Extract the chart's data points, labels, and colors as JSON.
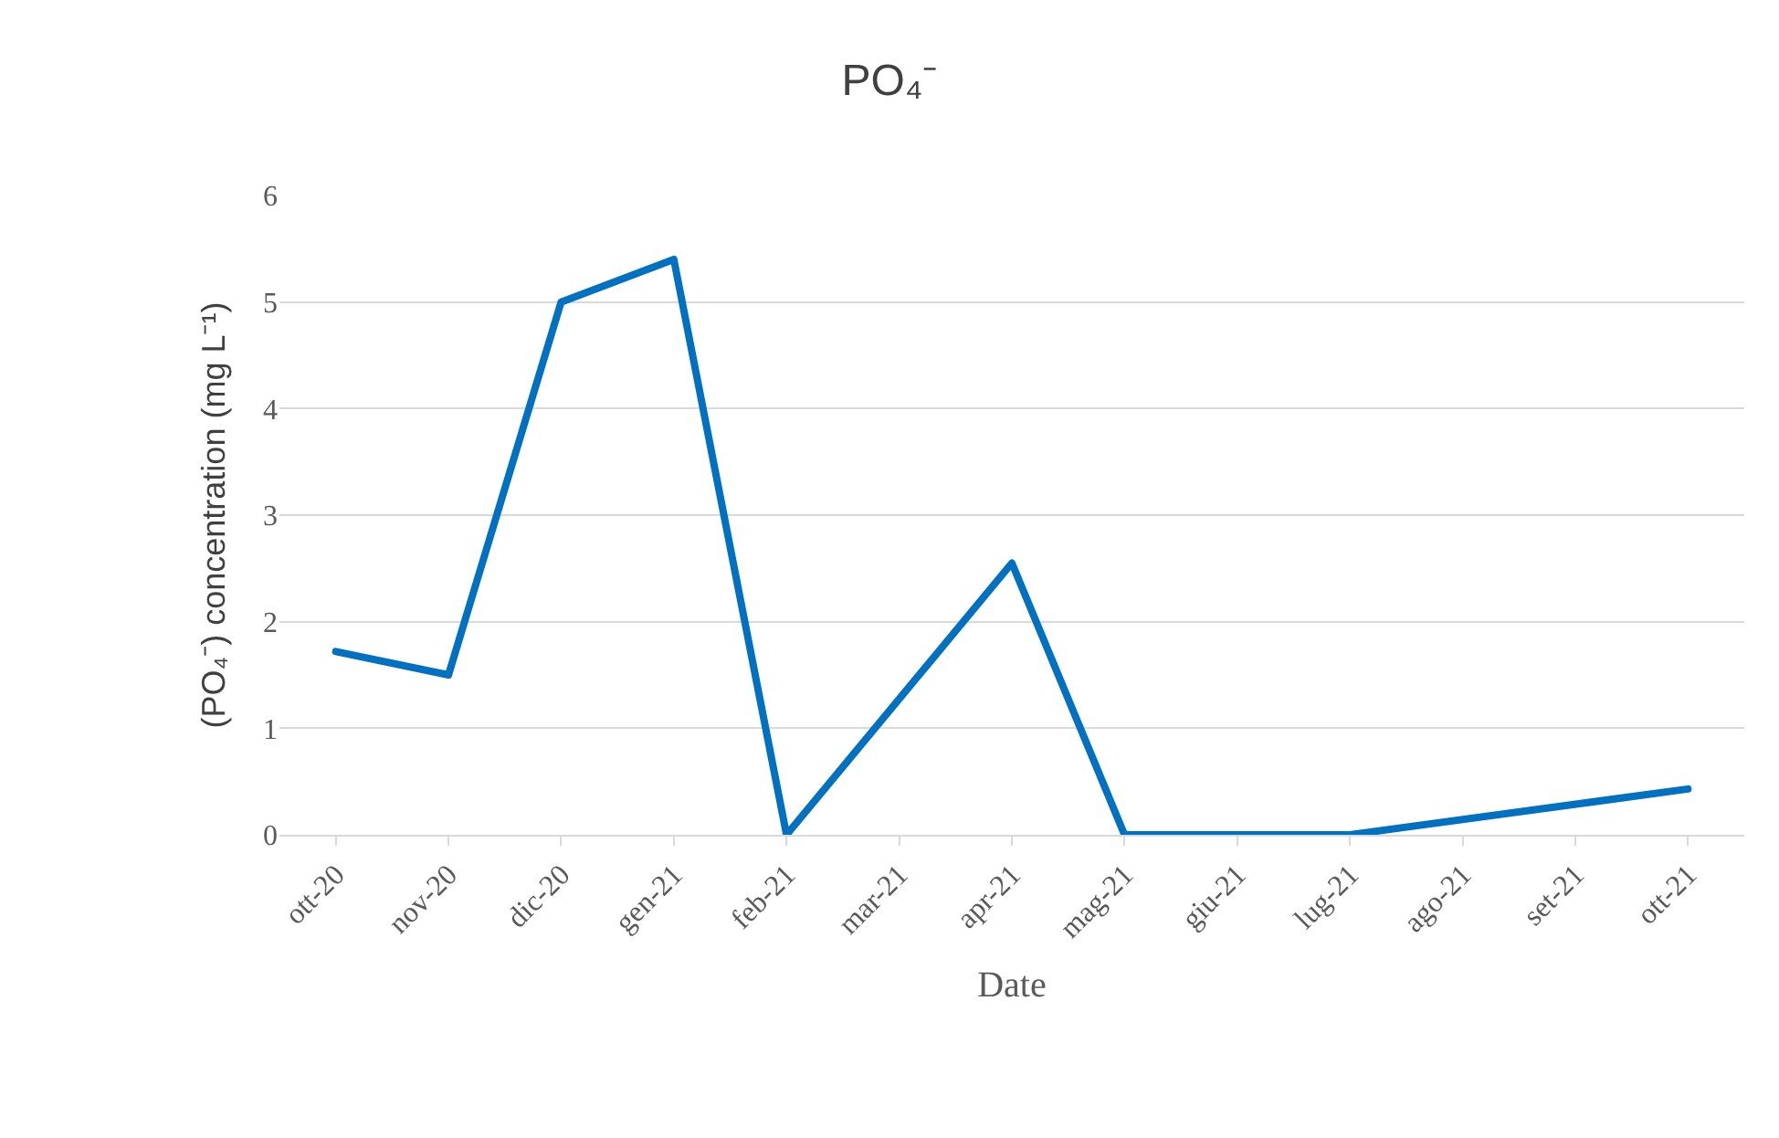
{
  "chart_data": {
    "type": "line",
    "title": "PO₄⁻",
    "xlabel": "Date",
    "ylabel": "(PO₄⁻) concentration (mg L⁻¹)",
    "categories": [
      "ott-20",
      "nov-20",
      "dic-20",
      "gen-21",
      "feb-21",
      "mar-21",
      "apr-21",
      "mag-21",
      "giu-21",
      "lug-21",
      "ago-21",
      "set-21",
      "ott-21"
    ],
    "series": [
      {
        "color": "#0070c0",
        "values": [
          1.72,
          1.5,
          5.0,
          5.4,
          0,
          null,
          2.55,
          0,
          null,
          0,
          null,
          null,
          0.43
        ]
      }
    ],
    "ylim": [
      0,
      6
    ],
    "yticks": [
      0,
      1,
      2,
      3,
      4,
      5,
      6
    ],
    "grid": "y",
    "marker": "none",
    "line_style": "solid"
  }
}
